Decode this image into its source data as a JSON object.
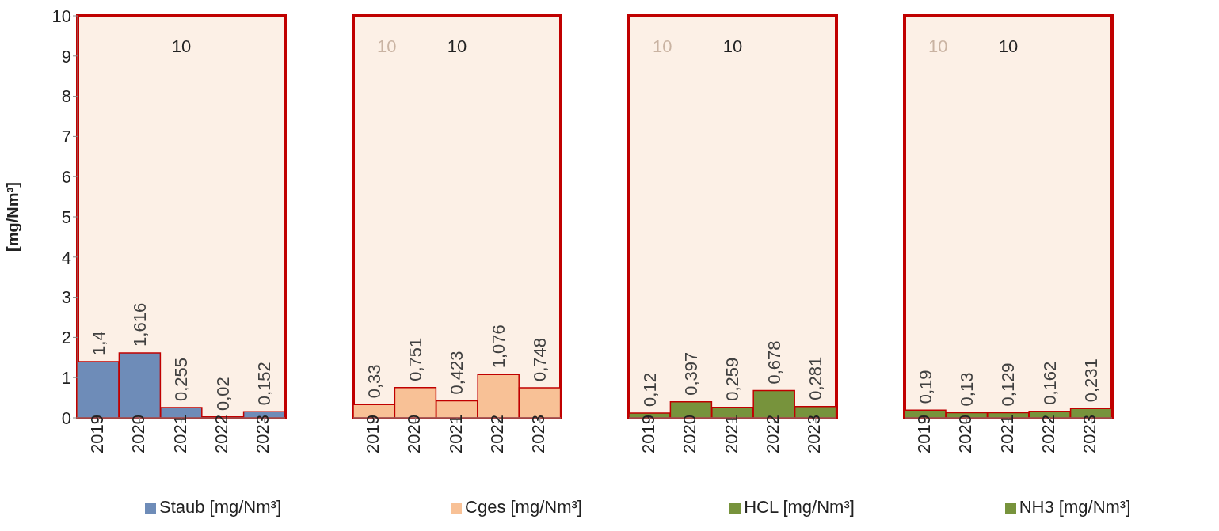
{
  "chart_data": [
    {
      "type": "bar",
      "categories": [
        "2019",
        "2020",
        "2021",
        "2022",
        "2023"
      ],
      "series": [
        {
          "name": "Staub [mg/Nm³]",
          "color": "#6e8cb8",
          "values": [
            1.4,
            1.616,
            0.255,
            0.02,
            0.152
          ],
          "value_labels": [
            "1,4",
            "1,616",
            "0,255",
            "0,02",
            "0,152"
          ]
        }
      ],
      "ylabel": "[mg/Nm³]",
      "ylim": [
        0,
        10
      ],
      "yticks": [
        0,
        1,
        2,
        3,
        4,
        5,
        6,
        7,
        8,
        9,
        10
      ],
      "bands": [
        {
          "axis": "y",
          "from": 0,
          "to": 10,
          "label": "10",
          "color": "#fcf0e6"
        }
      ],
      "legend": "bottom"
    },
    {
      "type": "bar",
      "categories": [
        "2019",
        "2020",
        "2021",
        "2022",
        "2023"
      ],
      "series": [
        {
          "name": "Cges [mg/Nm³]",
          "color": "#f8c196",
          "values": [
            0.33,
            0.751,
            0.423,
            1.076,
            0.748
          ],
          "value_labels": [
            "0,33",
            "0,751",
            "0,423",
            "1,076",
            "0,748"
          ]
        }
      ],
      "ylim": [
        0,
        10
      ],
      "yticks": [
        0,
        1,
        2,
        3,
        4,
        5,
        6,
        7,
        8,
        9,
        10
      ],
      "tick_labels": "x",
      "bands": [
        {
          "axis": "y",
          "from": 0,
          "to": 10,
          "label": "10",
          "color": "#fcf0e6"
        }
      ],
      "annotations": [
        "10"
      ],
      "legend": "bottom"
    },
    {
      "type": "bar",
      "categories": [
        "2019",
        "2020",
        "2021",
        "2022",
        "2023"
      ],
      "series": [
        {
          "name": "HCL [mg/Nm³]",
          "color": "#77933c",
          "values": [
            0.12,
            0.397,
            0.259,
            0.678,
            0.281
          ],
          "value_labels": [
            "0,12",
            "0,397",
            "0,259",
            "0,678",
            "0,281"
          ]
        }
      ],
      "ylim": [
        0,
        10
      ],
      "yticks": [
        0,
        1,
        2,
        3,
        4,
        5,
        6,
        7,
        8,
        9,
        10
      ],
      "tick_labels": "x",
      "bands": [
        {
          "axis": "y",
          "from": 0,
          "to": 10,
          "label": "10",
          "color": "#fcf0e6"
        }
      ],
      "annotations": [
        "10"
      ],
      "legend": "bottom"
    },
    {
      "type": "bar",
      "categories": [
        "2019",
        "2020",
        "2021",
        "2022",
        "2023"
      ],
      "series": [
        {
          "name": "NH3 [mg/Nm³]",
          "color": "#77933c",
          "values": [
            0.19,
            0.13,
            0.129,
            0.162,
            0.231
          ],
          "value_labels": [
            "0,19",
            "0,13",
            "0,129",
            "0,162",
            "0,231"
          ]
        }
      ],
      "ylim": [
        0,
        10
      ],
      "yticks": [
        0,
        1,
        2,
        3,
        4,
        5,
        6,
        7,
        8,
        9,
        10
      ],
      "tick_labels": "x",
      "bands": [
        {
          "axis": "y",
          "from": 0,
          "to": 10,
          "label": "10",
          "color": "#fcf0e6"
        }
      ],
      "annotations": [
        "10"
      ],
      "legend": "bottom"
    }
  ]
}
